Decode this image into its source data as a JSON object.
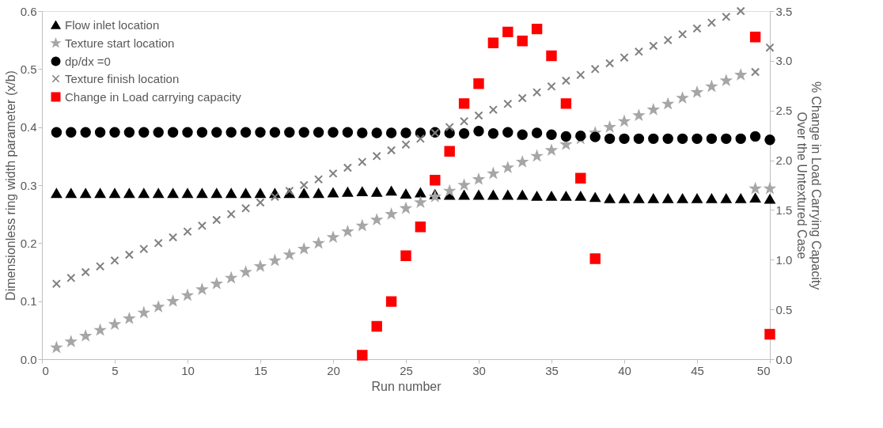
{
  "chart_data": {
    "type": "scatter",
    "xlabel": "Run number",
    "ylabel": "Dimensionless ring width parameter (x/b)",
    "y2label": "% Change in Load Carrying Capacity\nOver the Untextured Case",
    "x": [
      1,
      2,
      3,
      4,
      5,
      6,
      7,
      8,
      9,
      10,
      11,
      12,
      13,
      14,
      15,
      16,
      17,
      18,
      19,
      20,
      21,
      22,
      23,
      24,
      25,
      26,
      27,
      28,
      29,
      30,
      31,
      32,
      33,
      34,
      35,
      36,
      37,
      38,
      39,
      40,
      41,
      42,
      43,
      44,
      45,
      46,
      47,
      48,
      49,
      50
    ],
    "series": [
      {
        "name": "Flow inlet location",
        "color": "#000000",
        "marker": "triangle",
        "values": [
          0.286,
          0.286,
          0.286,
          0.286,
          0.286,
          0.286,
          0.286,
          0.286,
          0.286,
          0.286,
          0.286,
          0.286,
          0.286,
          0.286,
          0.286,
          0.286,
          0.286,
          0.286,
          0.286,
          0.287,
          0.288,
          0.289,
          0.288,
          0.29,
          0.285,
          0.287,
          0.284,
          0.283,
          0.283,
          0.283,
          0.283,
          0.283,
          0.283,
          0.281,
          0.281,
          0.281,
          0.281,
          0.279,
          0.277,
          0.277,
          0.277,
          0.277,
          0.277,
          0.277,
          0.277,
          0.277,
          0.277,
          0.277,
          0.278,
          0.276
        ]
      },
      {
        "name": "Texture start location",
        "color": "#a6a6a6",
        "marker": "star",
        "values": [
          0.02,
          0.03,
          0.04,
          0.05,
          0.06,
          0.07,
          0.08,
          0.09,
          0.1,
          0.11,
          0.12,
          0.13,
          0.14,
          0.15,
          0.16,
          0.17,
          0.18,
          0.19,
          0.2,
          0.21,
          0.22,
          0.23,
          0.24,
          0.25,
          0.26,
          0.27,
          0.28,
          0.29,
          0.3,
          0.31,
          0.32,
          0.33,
          0.34,
          0.35,
          0.36,
          0.37,
          0.38,
          0.39,
          0.4,
          0.41,
          0.42,
          0.43,
          0.44,
          0.45,
          0.46,
          0.47,
          0.48,
          0.49,
          0.294,
          0.294
        ]
      },
      {
        "name": "dp/dx =0",
        "color": "#000000",
        "marker": "circle",
        "values": [
          0.391,
          0.391,
          0.391,
          0.391,
          0.391,
          0.391,
          0.391,
          0.391,
          0.391,
          0.391,
          0.391,
          0.391,
          0.391,
          0.391,
          0.391,
          0.391,
          0.391,
          0.391,
          0.391,
          0.391,
          0.391,
          0.39,
          0.39,
          0.39,
          0.39,
          0.39,
          0.391,
          0.39,
          0.389,
          0.393,
          0.389,
          0.391,
          0.387,
          0.39,
          0.387,
          0.384,
          0.385,
          0.383,
          0.38,
          0.38,
          0.38,
          0.38,
          0.38,
          0.38,
          0.38,
          0.38,
          0.38,
          0.38,
          0.384,
          0.378
        ]
      },
      {
        "name": "Texture finish location",
        "color": "#7f7f7f",
        "marker": "cross",
        "values": [
          0.13,
          0.14,
          0.15,
          0.16,
          0.17,
          0.18,
          0.19,
          0.2,
          0.21,
          0.22,
          0.23,
          0.24,
          0.25,
          0.26,
          0.27,
          0.28,
          0.29,
          0.3,
          0.31,
          0.32,
          0.33,
          0.34,
          0.35,
          0.36,
          0.37,
          0.38,
          0.39,
          0.4,
          0.41,
          0.42,
          0.43,
          0.44,
          0.45,
          0.46,
          0.47,
          0.48,
          0.49,
          0.5,
          0.51,
          0.52,
          0.53,
          0.54,
          0.55,
          0.56,
          0.57,
          0.58,
          0.59,
          0.6,
          0.495,
          0.537
        ]
      },
      {
        "name": "Change in Load carrying capacity",
        "color": "#ff0000",
        "marker": "square",
        "axis": "y2",
        "x": [
          22,
          23,
          24,
          25,
          26,
          27,
          28,
          29,
          30,
          31,
          32,
          33,
          34,
          35,
          36,
          37,
          38,
          49,
          50
        ],
        "values": [
          0.04,
          0.33,
          0.58,
          1.04,
          1.33,
          1.8,
          2.09,
          2.57,
          2.77,
          3.18,
          3.29,
          3.2,
          3.32,
          3.05,
          2.57,
          1.82,
          1.01,
          3.24,
          0.25
        ]
      }
    ],
    "xlim": [
      0,
      50
    ],
    "xticks": [
      0,
      5,
      10,
      15,
      20,
      25,
      30,
      35,
      40,
      45,
      50
    ],
    "ylim": [
      0,
      0.6
    ],
    "yticks": [
      {
        "value": 0,
        "label": "0.0"
      },
      0.1,
      0.2,
      0.3,
      0.4,
      0.5,
      0.6
    ],
    "y2lim": [
      0,
      3.5
    ],
    "y2ticks": [
      {
        "value": 0,
        "label": "0.0"
      },
      {
        "value": 0.5,
        "label": "0.5"
      },
      {
        "value": 1,
        "label": "1.0"
      },
      {
        "value": 1.5,
        "label": "1.5"
      },
      {
        "value": 2,
        "label": "2.0"
      },
      {
        "value": 2.5,
        "label": "2.5"
      },
      {
        "value": 3,
        "label": "3.0"
      },
      {
        "value": 3.5,
        "label": "3.5"
      }
    ],
    "grid": false,
    "legend": "top left"
  }
}
